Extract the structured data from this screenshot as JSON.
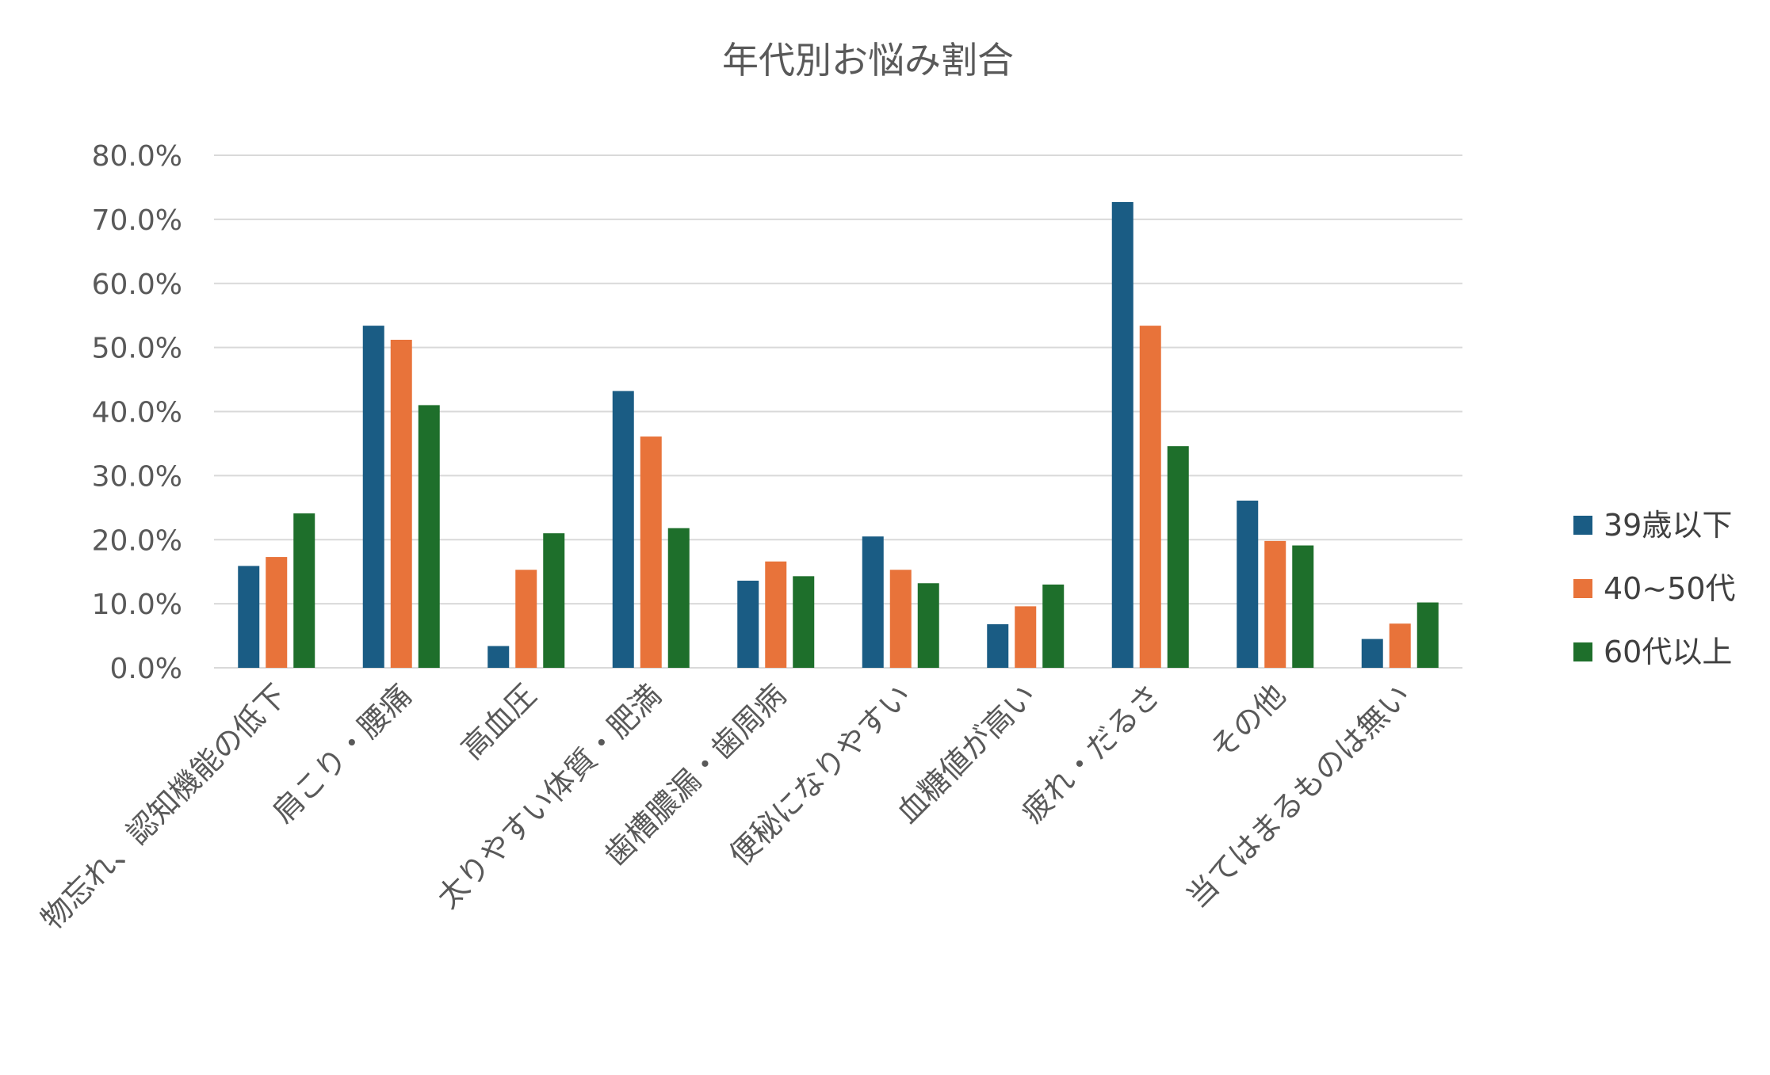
{
  "chart_data": {
    "type": "bar",
    "title": "年代別お悩み割合",
    "xlabel": "",
    "ylabel": "",
    "ylim": [
      0,
      0.8
    ],
    "y_ticks": [
      "0.0%",
      "10.0%",
      "20.0%",
      "30.0%",
      "40.0%",
      "50.0%",
      "60.0%",
      "70.0%",
      "80.0%"
    ],
    "grid": true,
    "legend_position": "right",
    "categories": [
      "物忘れ、認知機能の低下",
      "肩こり・腰痛",
      "高血圧",
      "太りやすい体質・肥満",
      "歯槽膿漏・歯周病",
      "便秘になりやすい",
      "血糖値が高い",
      "疲れ・だるさ",
      "その他",
      "当てはまるものは無い"
    ],
    "series": [
      {
        "name": "39歳以下",
        "color": "#1a5c84",
        "values": [
          0.159,
          0.534,
          0.034,
          0.432,
          0.136,
          0.205,
          0.068,
          0.727,
          0.261,
          0.045
        ]
      },
      {
        "name": "40~50代",
        "color": "#e8733a",
        "values": [
          0.173,
          0.512,
          0.153,
          0.361,
          0.166,
          0.153,
          0.096,
          0.534,
          0.198,
          0.069
        ]
      },
      {
        "name": "60代以上",
        "color": "#1e6f2b",
        "values": [
          0.241,
          0.41,
          0.21,
          0.218,
          0.143,
          0.132,
          0.13,
          0.346,
          0.191,
          0.102
        ]
      }
    ]
  }
}
